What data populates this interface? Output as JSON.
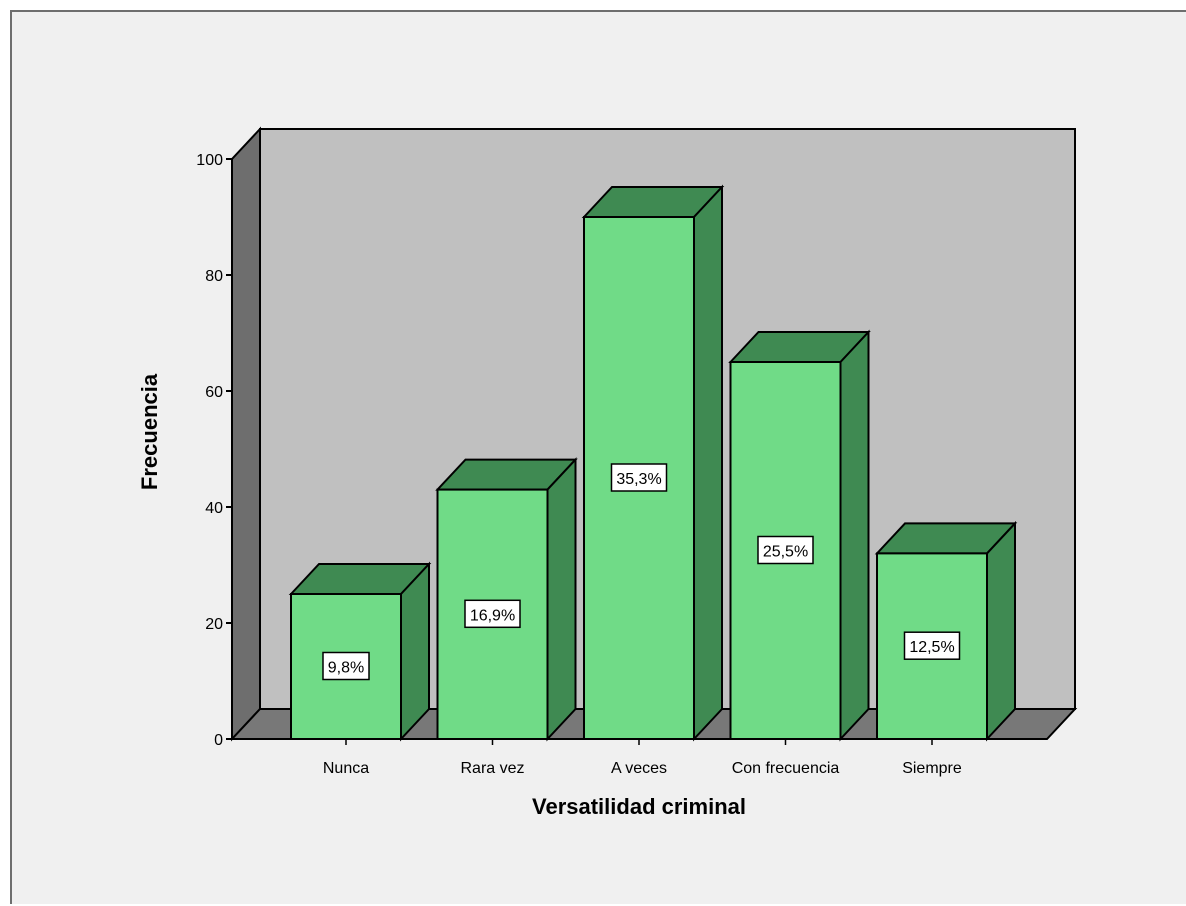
{
  "chart_data": {
    "type": "bar",
    "style": "3d",
    "title": "",
    "xlabel": "Versatilidad criminal",
    "ylabel": "Frecuencia",
    "categories": [
      "Nunca",
      "Rara vez",
      "A veces",
      "Con frecuencia",
      "Siempre"
    ],
    "values": [
      25,
      43,
      90,
      65,
      32
    ],
    "data_labels": [
      "9,8%",
      "16,9%",
      "35,3%",
      "25,5%",
      "12,5%"
    ],
    "ylim": [
      0,
      100
    ],
    "yticks": [
      0,
      20,
      40,
      60,
      80,
      100
    ],
    "grid": false,
    "legend": "none",
    "colors": {
      "bar_front": "#70db87",
      "bar_side": "#3f8a52",
      "bar_top": "#3f8a52",
      "back_wall": "#c0c0c0",
      "side_wall": "#6e6e6e",
      "floor": "#787878",
      "background": "#f0f0f0"
    }
  }
}
